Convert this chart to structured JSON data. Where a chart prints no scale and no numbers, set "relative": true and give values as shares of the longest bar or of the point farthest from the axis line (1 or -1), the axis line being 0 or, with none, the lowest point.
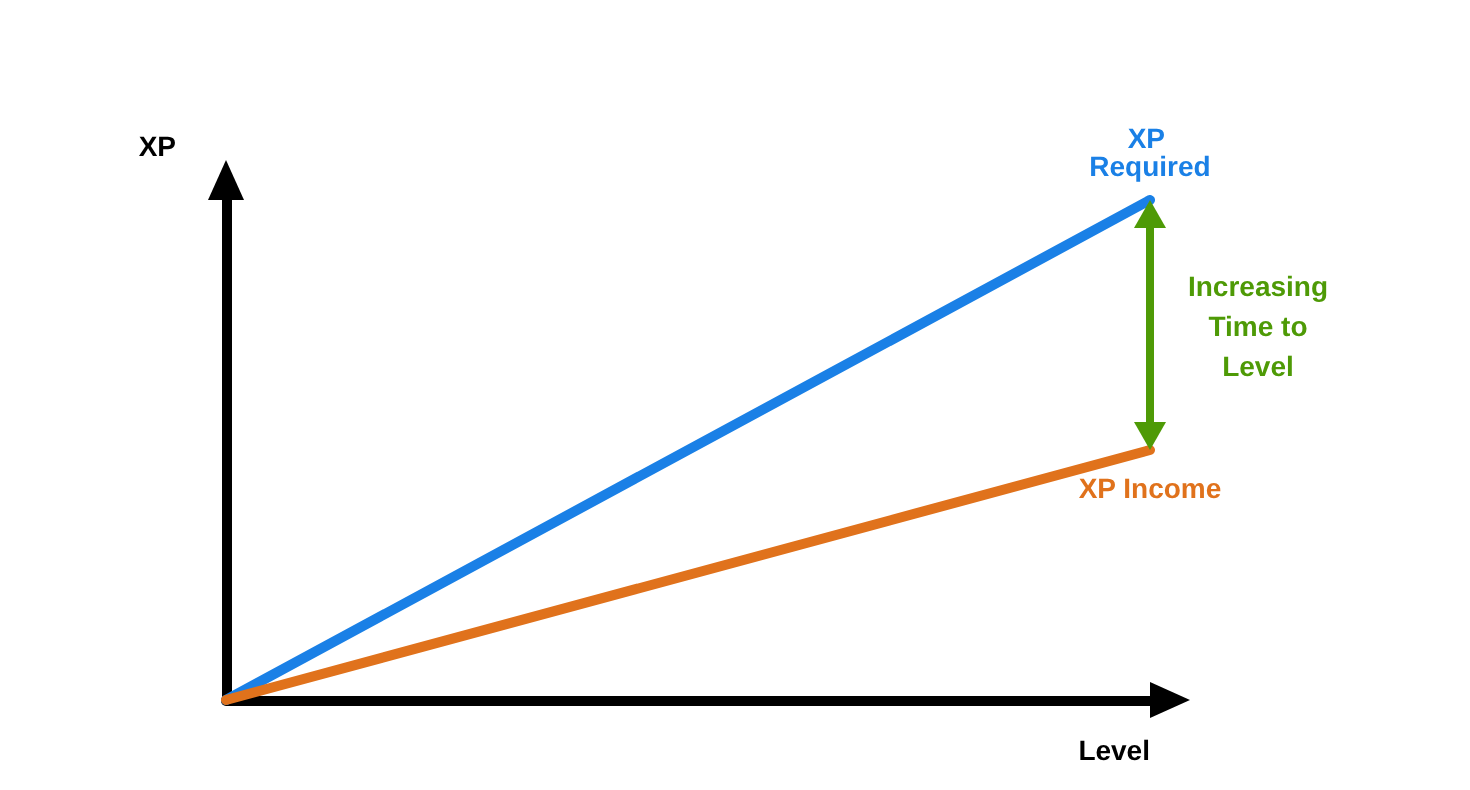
{
  "chart_data": {
    "type": "line",
    "relative": true,
    "xlabel": "Level",
    "ylabel": "XP",
    "categories": [
      null,
      null
    ],
    "series": [
      {
        "name": "XP Required",
        "color": "#1a80e6",
        "values": [
          0,
          1
        ]
      },
      {
        "name": "XP Income",
        "color": "#e0721c",
        "values": [
          0,
          0.5
        ]
      }
    ],
    "annotations": [
      "Increasing Time to Level"
    ],
    "legend": false,
    "grid": false
  }
}
